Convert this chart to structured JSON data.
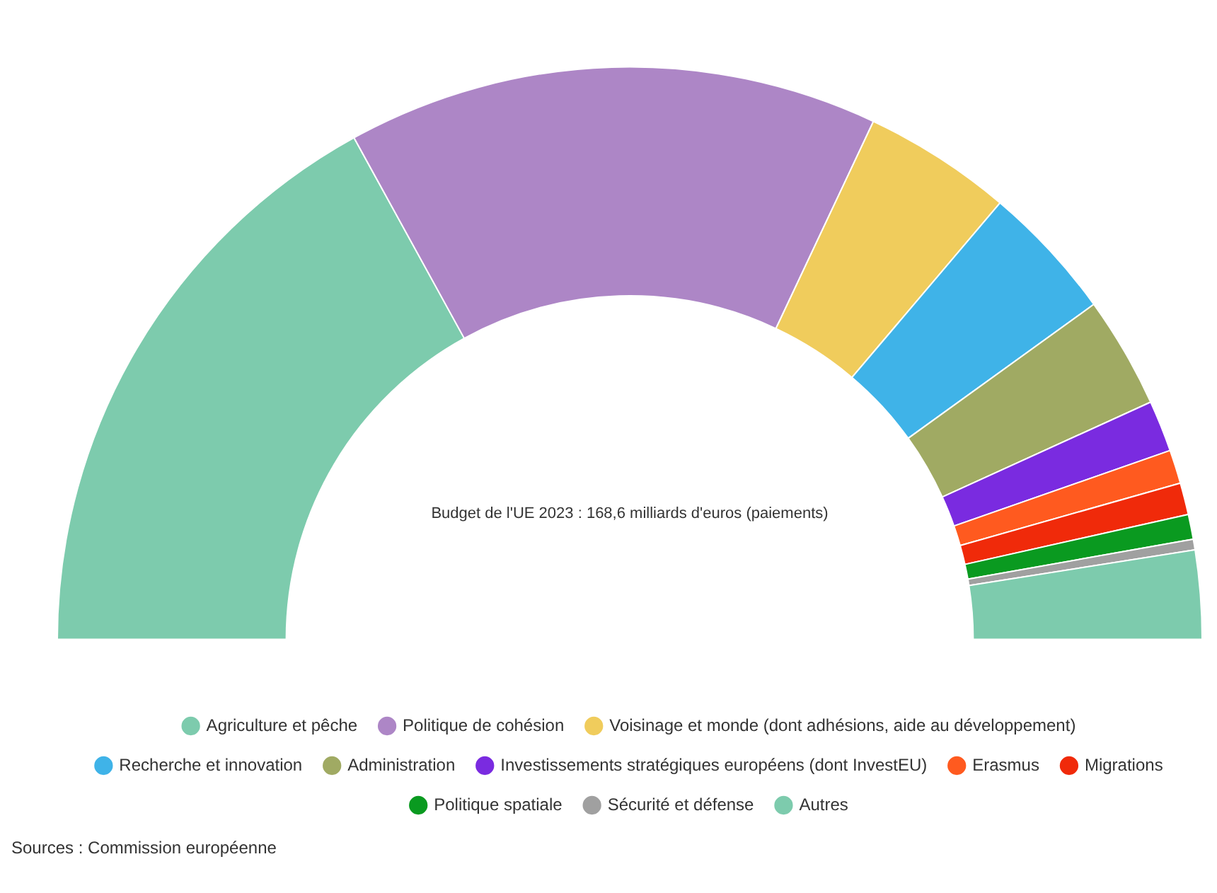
{
  "chart_data": {
    "type": "donut",
    "title": "Budget de l'UE 2023 : 168,6 milliards d'euros (paiements)",
    "categories": [
      "Agriculture et pêche",
      "Politique de cohésion",
      "Voisinage et monde (dont adhésions, aide au développement)",
      "Recherche et innovation",
      "Administration",
      "Investissements stratégiques européens (dont InvestEU)",
      "Erasmus",
      "Migrations",
      "Politique spatiale",
      "Sécurité et défense",
      "Autres"
    ],
    "values": [
      34,
      30,
      8.4,
      7.7,
      6.3,
      2.9,
      1.9,
      1.8,
      1.4,
      0.6,
      5
    ],
    "colors": [
      "#7dcbad",
      "#ad86c6",
      "#f0cc5c",
      "#3fb3e8",
      "#a0aa63",
      "#7a2be0",
      "#ff5a1f",
      "#f02a0a",
      "#0a9a20",
      "#a0a0a0",
      "#7dcbad"
    ],
    "legend": "bottom",
    "annotations": [
      "Sources : Commission européenne"
    ]
  }
}
